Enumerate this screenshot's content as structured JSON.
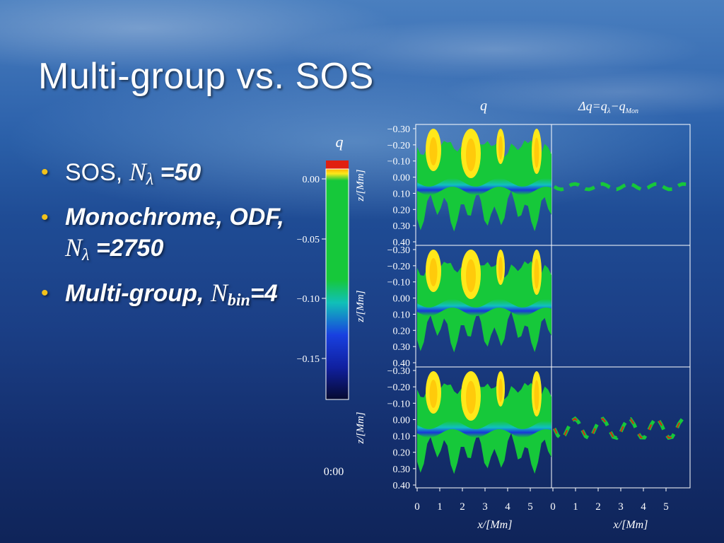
{
  "slide": {
    "title": "Multi-group vs. SOS",
    "bullets": [
      {
        "text": "SOS,",
        "symbol": "N",
        "subscript": "λ",
        "value": "=50"
      },
      {
        "text": "Monochrome, ODF,",
        "symbol": "N",
        "subscript": "λ",
        "value": "=2750"
      },
      {
        "text": "Multi-group,",
        "symbol": "N",
        "subscript": "bin",
        "value": "=4"
      }
    ]
  },
  "figure": {
    "colorbar": {
      "label": "q",
      "ticks": [
        "0.00",
        "−0.05",
        "−0.10",
        "−0.15"
      ],
      "ticks_values": [
        0.0,
        -0.05,
        -0.1,
        -0.15
      ]
    },
    "timestamp": "0:00",
    "column_titles": [
      "q",
      "Δq=q_λ−q_Mon"
    ],
    "column_title_right_main": "Δq=q",
    "column_title_right_sub1": "λ",
    "column_title_right_mid": "−q",
    "column_title_right_sub2": "Mon",
    "ylabel": "z/[Mm]",
    "xlabel": "x/[Mm]",
    "y_ticks": [
      "−0.30",
      "−0.20",
      "−0.10",
      "0.00",
      "0.10",
      "0.20",
      "0.30",
      "0.40"
    ],
    "x_ticks": [
      "0",
      "1",
      "2",
      "3",
      "4",
      "5"
    ],
    "colors": {
      "yellow": "#ffe81a",
      "orange": "#ffb000",
      "red": "#e02010",
      "green": "#16c83a",
      "cyan": "#10c8c8",
      "blue": "#1830d0",
      "navy": "#0a1040"
    }
  }
}
